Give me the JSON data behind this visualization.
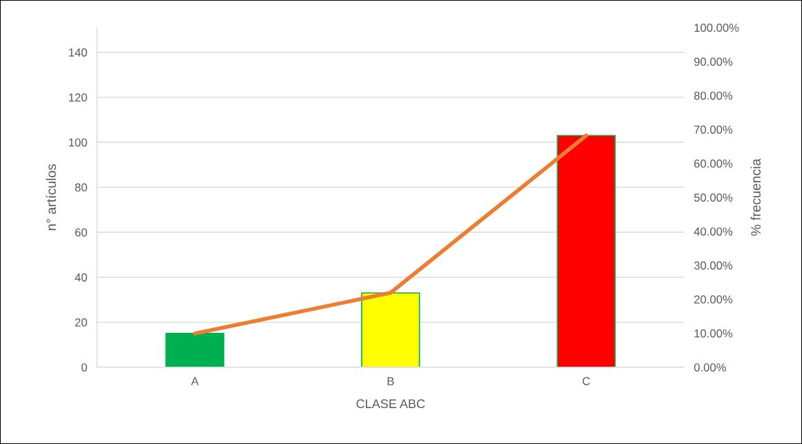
{
  "chart_data": {
    "type": "bar",
    "xlabel": "CLASE ABC",
    "ylabel": "n° artículos",
    "y2label": "% frecuencia",
    "categories": [
      "A",
      "B",
      "C"
    ],
    "series": [
      {
        "colors": [
          "#00b050",
          "#ffff00",
          "#ff0000"
        ],
        "values": [
          15,
          33,
          103
        ]
      },
      {
        "type": "line",
        "axis": "y2",
        "color": "#ed7d31",
        "values": [
          9.9,
          21.9,
          68.2
        ]
      }
    ],
    "ylim": [
      0,
      151
    ],
    "yticks": [
      0,
      20,
      40,
      60,
      80,
      100,
      120,
      140
    ],
    "y2lim": [
      0,
      100
    ],
    "y2ticks": [
      {
        "value": 0,
        "label": "0.00%"
      },
      {
        "value": 10,
        "label": "10.00%"
      },
      {
        "value": 20,
        "label": "20.00%"
      },
      {
        "value": 30,
        "label": "30.00%"
      },
      {
        "value": 40,
        "label": "40.00%"
      },
      {
        "value": 50,
        "label": "50.00%"
      },
      {
        "value": 60,
        "label": "60.00%"
      },
      {
        "value": 70,
        "label": "70.00%"
      },
      {
        "value": 80,
        "label": "80.00%"
      },
      {
        "value": 90,
        "label": "90.00%"
      },
      {
        "value": 100,
        "label": "100.00%"
      }
    ],
    "grid": "y",
    "legend": false,
    "marker": "none",
    "line_style": "solid"
  }
}
